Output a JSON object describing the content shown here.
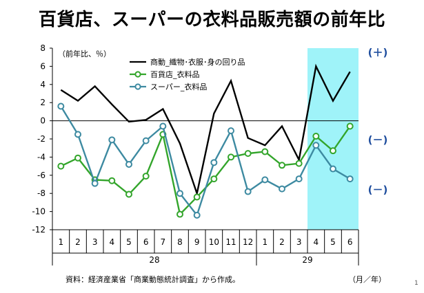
{
  "title": "百貨店、スーパーの衣料品販売額の前年比",
  "source_note": "資料：経済産業省「商業動態統計調査」から作成。",
  "page_number": "1",
  "chart_data": {
    "type": "line",
    "y_unit_label": "（前年比、％）",
    "x_unit_label": "（月／年）",
    "categories": [
      "1",
      "2",
      "3",
      "4",
      "5",
      "6",
      "7",
      "8",
      "9",
      "10",
      "11",
      "12",
      "1",
      "2",
      "3",
      "4",
      "5",
      "6"
    ],
    "year_groups": [
      {
        "label": "28",
        "start": 0,
        "end": 11
      },
      {
        "label": "29",
        "start": 12,
        "end": 17
      }
    ],
    "ylim": [
      -12,
      8
    ],
    "yticks": [
      8,
      6,
      4,
      2,
      0,
      -2,
      -4,
      -6,
      -8,
      -10,
      -12
    ],
    "highlight": {
      "start": 15,
      "end": 17,
      "color": "#9ff3f9"
    },
    "series": [
      {
        "name": "商動_織物･衣服･身の回り品",
        "color": "#000000",
        "marker": false,
        "values": [
          3.4,
          2.2,
          3.8,
          1.8,
          -0.1,
          0.1,
          1.3,
          -2.5,
          -8.0,
          0.8,
          4.4,
          -1.9,
          -2.7,
          -0.6,
          -4.3,
          6.0,
          2.2,
          5.4
        ]
      },
      {
        "name": "百貨店_衣料品",
        "color": "#33a52b",
        "marker": true,
        "values": [
          -5.0,
          -4.1,
          -6.5,
          -6.6,
          -8.1,
          -6.1,
          -1.5,
          -10.3,
          -8.4,
          -6.4,
          -4.0,
          -3.6,
          -3.4,
          -4.9,
          -4.7,
          -1.7,
          -3.3,
          -0.6
        ]
      },
      {
        "name": "スーパー_衣料品",
        "color": "#3d8aa1",
        "marker": true,
        "values": [
          1.6,
          -1.5,
          -6.9,
          -2.1,
          -4.8,
          -2.2,
          -0.6,
          -8.0,
          -10.4,
          -4.6,
          -1.1,
          -7.8,
          -6.5,
          -7.5,
          -6.4,
          -2.7,
          -5.3,
          -6.4
        ]
      }
    ],
    "annotations": [
      {
        "text": "(＋)",
        "value": 7.5
      },
      {
        "text": "(－)",
        "value": -2.1
      },
      {
        "text": "(－)",
        "value": -7.6
      }
    ]
  }
}
